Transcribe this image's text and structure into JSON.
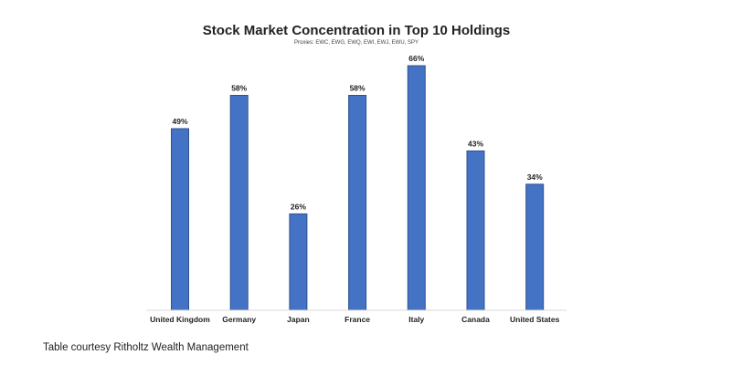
{
  "colors": {
    "bar_fill": "#4472c4",
    "bar_stroke": "#2f528f",
    "axis": "#d9d9d9"
  },
  "chart_data": {
    "type": "bar",
    "title": "Stock Market Concentration in Top 10 Holdings",
    "subtitle": "Proxies: EWC, EWG, EWQ, EWI, EWJ, EWU, SPY",
    "categories": [
      "United Kingdom",
      "Germany",
      "Japan",
      "France",
      "Italy",
      "Canada",
      "United States"
    ],
    "values": [
      49,
      58,
      26,
      58,
      66,
      43,
      34
    ],
    "value_labels": [
      "49%",
      "58%",
      "26%",
      "58%",
      "66%",
      "43%",
      "34%"
    ],
    "ylim": [
      0,
      70
    ],
    "grid": false,
    "legend": "none",
    "xlabel": "",
    "ylabel": ""
  },
  "footer": {
    "caption": "Table courtesy Ritholtz Wealth Management"
  }
}
